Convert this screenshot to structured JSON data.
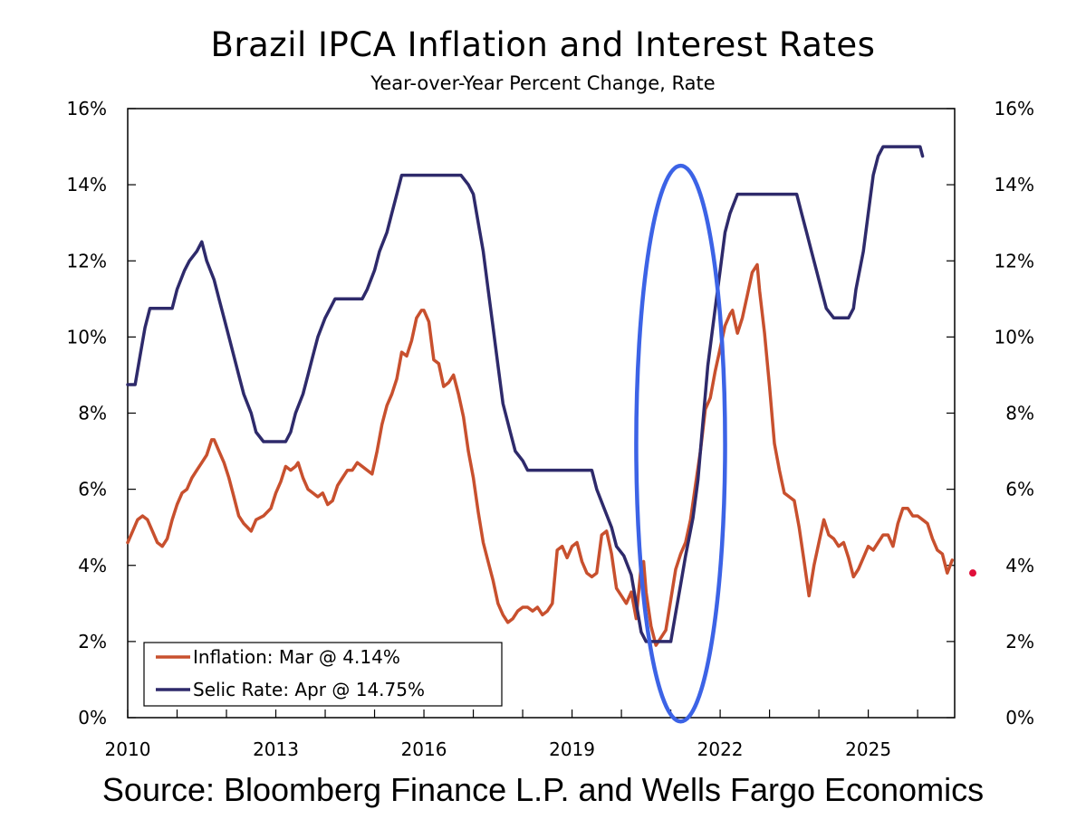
{
  "title": "Brazil IPCA Inflation and Interest Rates",
  "subtitle": "Year-over-Year Percent Change, Rate",
  "source": "Source: Bloomberg Finance L.P. and Wells Fargo Economics",
  "colors": {
    "inflation": "#c8502e",
    "selic": "#2e2a6b",
    "highlight": "#3c63e6",
    "marker": "#e0103a"
  },
  "chart_data": {
    "type": "line",
    "title": "Brazil IPCA Inflation and Interest Rates",
    "subtitle": "Year-over-Year Percent Change, Rate",
    "xlim": [
      2010,
      2026.75
    ],
    "ylim": [
      0,
      16
    ],
    "x_ticks": [
      2010,
      2013,
      2016,
      2019,
      2022,
      2025
    ],
    "x_tick_labels": [
      "2010",
      "2013",
      "2016",
      "2019",
      "2022",
      "2025"
    ],
    "y_ticks": [
      0,
      2,
      4,
      6,
      8,
      10,
      12,
      14,
      16
    ],
    "y_tick_labels": [
      "0%",
      "2%",
      "4%",
      "6%",
      "8%",
      "10%",
      "12%",
      "14%",
      "16%"
    ],
    "y_tick_labels_right": [
      "0%",
      "2%",
      "4%",
      "6%",
      "8%",
      "10%",
      "12%",
      "14%",
      "16%"
    ],
    "grid": false,
    "legend_position": "bottom-left",
    "series": [
      {
        "name": "Inflation",
        "legend_label": "Inflation: Mar @ 4.14%",
        "color_key": "inflation",
        "points": [
          [
            2010.0,
            4.6
          ],
          [
            2010.1,
            4.9
          ],
          [
            2010.2,
            5.2
          ],
          [
            2010.3,
            5.3
          ],
          [
            2010.4,
            5.2
          ],
          [
            2010.5,
            4.9
          ],
          [
            2010.6,
            4.6
          ],
          [
            2010.7,
            4.5
          ],
          [
            2010.8,
            4.7
          ],
          [
            2010.9,
            5.2
          ],
          [
            2011.0,
            5.6
          ],
          [
            2011.1,
            5.9
          ],
          [
            2011.2,
            6.0
          ],
          [
            2011.3,
            6.3
          ],
          [
            2011.4,
            6.5
          ],
          [
            2011.5,
            6.7
          ],
          [
            2011.6,
            6.9
          ],
          [
            2011.7,
            7.3
          ],
          [
            2011.75,
            7.3
          ],
          [
            2011.85,
            7.0
          ],
          [
            2011.95,
            6.7
          ],
          [
            2012.05,
            6.3
          ],
          [
            2012.15,
            5.8
          ],
          [
            2012.25,
            5.3
          ],
          [
            2012.35,
            5.1
          ],
          [
            2012.5,
            4.9
          ],
          [
            2012.6,
            5.2
          ],
          [
            2012.75,
            5.3
          ],
          [
            2012.9,
            5.5
          ],
          [
            2013.0,
            5.9
          ],
          [
            2013.1,
            6.2
          ],
          [
            2013.2,
            6.6
          ],
          [
            2013.3,
            6.5
          ],
          [
            2013.4,
            6.6
          ],
          [
            2013.45,
            6.7
          ],
          [
            2013.55,
            6.3
          ],
          [
            2013.65,
            6.0
          ],
          [
            2013.75,
            5.9
          ],
          [
            2013.85,
            5.8
          ],
          [
            2013.95,
            5.9
          ],
          [
            2014.05,
            5.6
          ],
          [
            2014.15,
            5.7
          ],
          [
            2014.25,
            6.1
          ],
          [
            2014.35,
            6.3
          ],
          [
            2014.45,
            6.5
          ],
          [
            2014.55,
            6.5
          ],
          [
            2014.65,
            6.7
          ],
          [
            2014.75,
            6.6
          ],
          [
            2014.85,
            6.5
          ],
          [
            2014.95,
            6.4
          ],
          [
            2015.05,
            7.0
          ],
          [
            2015.15,
            7.7
          ],
          [
            2015.25,
            8.2
          ],
          [
            2015.35,
            8.5
          ],
          [
            2015.45,
            8.9
          ],
          [
            2015.55,
            9.6
          ],
          [
            2015.65,
            9.5
          ],
          [
            2015.75,
            9.9
          ],
          [
            2015.85,
            10.5
          ],
          [
            2015.95,
            10.7
          ],
          [
            2016.0,
            10.7
          ],
          [
            2016.1,
            10.4
          ],
          [
            2016.2,
            9.4
          ],
          [
            2016.3,
            9.3
          ],
          [
            2016.4,
            8.7
          ],
          [
            2016.5,
            8.8
          ],
          [
            2016.6,
            9.0
          ],
          [
            2016.7,
            8.5
          ],
          [
            2016.8,
            7.9
          ],
          [
            2016.9,
            7.0
          ],
          [
            2017.0,
            6.3
          ],
          [
            2017.1,
            5.4
          ],
          [
            2017.2,
            4.6
          ],
          [
            2017.3,
            4.1
          ],
          [
            2017.4,
            3.6
          ],
          [
            2017.5,
            3.0
          ],
          [
            2017.6,
            2.7
          ],
          [
            2017.7,
            2.5
          ],
          [
            2017.8,
            2.6
          ],
          [
            2017.9,
            2.8
          ],
          [
            2018.0,
            2.9
          ],
          [
            2018.1,
            2.9
          ],
          [
            2018.2,
            2.8
          ],
          [
            2018.3,
            2.9
          ],
          [
            2018.4,
            2.7
          ],
          [
            2018.5,
            2.8
          ],
          [
            2018.6,
            3.0
          ],
          [
            2018.7,
            4.4
          ],
          [
            2018.8,
            4.5
          ],
          [
            2018.9,
            4.2
          ],
          [
            2019.0,
            4.5
          ],
          [
            2019.1,
            4.6
          ],
          [
            2019.2,
            4.1
          ],
          [
            2019.3,
            3.8
          ],
          [
            2019.4,
            3.7
          ],
          [
            2019.5,
            3.8
          ],
          [
            2019.6,
            4.8
          ],
          [
            2019.7,
            4.9
          ],
          [
            2019.8,
            4.3
          ],
          [
            2019.9,
            3.4
          ],
          [
            2020.0,
            3.2
          ],
          [
            2020.1,
            3.0
          ],
          [
            2020.2,
            3.3
          ],
          [
            2020.3,
            2.6
          ],
          [
            2020.4,
            4.0
          ],
          [
            2020.45,
            4.1
          ],
          [
            2020.5,
            3.3
          ],
          [
            2020.6,
            2.4
          ],
          [
            2020.7,
            1.9
          ],
          [
            2020.8,
            2.1
          ],
          [
            2020.9,
            2.3
          ],
          [
            2021.0,
            3.1
          ],
          [
            2021.1,
            3.9
          ],
          [
            2021.2,
            4.3
          ],
          [
            2021.3,
            4.6
          ],
          [
            2021.4,
            5.2
          ],
          [
            2021.5,
            6.1
          ],
          [
            2021.6,
            7.0
          ],
          [
            2021.7,
            8.1
          ],
          [
            2021.8,
            8.4
          ],
          [
            2021.9,
            9.1
          ],
          [
            2022.0,
            9.7
          ],
          [
            2022.1,
            10.3
          ],
          [
            2022.2,
            10.6
          ],
          [
            2022.25,
            10.7
          ],
          [
            2022.3,
            10.4
          ],
          [
            2022.35,
            10.1
          ],
          [
            2022.45,
            10.5
          ],
          [
            2022.55,
            11.1
          ],
          [
            2022.65,
            11.7
          ],
          [
            2022.75,
            11.9
          ],
          [
            2022.8,
            11.2
          ],
          [
            2022.9,
            10.1
          ],
          [
            2023.0,
            8.7
          ],
          [
            2023.1,
            7.2
          ],
          [
            2023.2,
            6.5
          ],
          [
            2023.3,
            5.9
          ],
          [
            2023.4,
            5.8
          ],
          [
            2023.5,
            5.7
          ],
          [
            2023.6,
            5.0
          ],
          [
            2023.7,
            4.1
          ],
          [
            2023.8,
            3.2
          ],
          [
            2023.9,
            4.0
          ],
          [
            2024.0,
            4.6
          ],
          [
            2024.1,
            5.2
          ],
          [
            2024.2,
            4.8
          ],
          [
            2024.3,
            4.7
          ],
          [
            2024.4,
            4.5
          ],
          [
            2024.5,
            4.6
          ],
          [
            2024.6,
            4.2
          ],
          [
            2024.7,
            3.7
          ],
          [
            2024.8,
            3.9
          ],
          [
            2024.9,
            4.2
          ],
          [
            2025.0,
            4.5
          ],
          [
            2025.1,
            4.4
          ],
          [
            2025.2,
            4.6
          ],
          [
            2025.3,
            4.8
          ],
          [
            2025.4,
            4.8
          ],
          [
            2025.5,
            4.5
          ],
          [
            2025.6,
            5.1
          ],
          [
            2025.7,
            5.5
          ],
          [
            2025.8,
            5.5
          ],
          [
            2025.9,
            5.3
          ],
          [
            2026.0,
            5.3
          ],
          [
            2026.1,
            5.2
          ],
          [
            2026.2,
            5.1
          ],
          [
            2026.3,
            4.7
          ],
          [
            2026.4,
            4.4
          ],
          [
            2026.5,
            4.3
          ],
          [
            2026.6,
            3.8
          ],
          [
            2026.7,
            4.14
          ]
        ]
      },
      {
        "name": "Selic Rate",
        "legend_label": "Selic Rate: Apr @ 14.75%",
        "color_key": "selic",
        "points": [
          [
            2010.0,
            8.75
          ],
          [
            2010.15,
            8.75
          ],
          [
            2010.25,
            9.5
          ],
          [
            2010.35,
            10.25
          ],
          [
            2010.45,
            10.75
          ],
          [
            2010.9,
            10.75
          ],
          [
            2011.0,
            11.25
          ],
          [
            2011.15,
            11.75
          ],
          [
            2011.25,
            12.0
          ],
          [
            2011.4,
            12.25
          ],
          [
            2011.5,
            12.5
          ],
          [
            2011.6,
            12.0
          ],
          [
            2011.75,
            11.5
          ],
          [
            2011.85,
            11.0
          ],
          [
            2011.95,
            10.5
          ],
          [
            2012.1,
            9.75
          ],
          [
            2012.25,
            9.0
          ],
          [
            2012.35,
            8.5
          ],
          [
            2012.5,
            8.0
          ],
          [
            2012.6,
            7.5
          ],
          [
            2012.75,
            7.25
          ],
          [
            2013.2,
            7.25
          ],
          [
            2013.3,
            7.5
          ],
          [
            2013.4,
            8.0
          ],
          [
            2013.55,
            8.5
          ],
          [
            2013.65,
            9.0
          ],
          [
            2013.75,
            9.5
          ],
          [
            2013.85,
            10.0
          ],
          [
            2014.0,
            10.5
          ],
          [
            2014.1,
            10.75
          ],
          [
            2014.2,
            11.0
          ],
          [
            2014.75,
            11.0
          ],
          [
            2014.85,
            11.25
          ],
          [
            2015.0,
            11.75
          ],
          [
            2015.1,
            12.25
          ],
          [
            2015.25,
            12.75
          ],
          [
            2015.35,
            13.25
          ],
          [
            2015.45,
            13.75
          ],
          [
            2015.55,
            14.25
          ],
          [
            2016.75,
            14.25
          ],
          [
            2016.9,
            14.0
          ],
          [
            2017.0,
            13.75
          ],
          [
            2017.1,
            13.0
          ],
          [
            2017.2,
            12.25
          ],
          [
            2017.3,
            11.25
          ],
          [
            2017.4,
            10.25
          ],
          [
            2017.5,
            9.25
          ],
          [
            2017.6,
            8.25
          ],
          [
            2017.75,
            7.5
          ],
          [
            2017.85,
            7.0
          ],
          [
            2018.0,
            6.75
          ],
          [
            2018.1,
            6.5
          ],
          [
            2019.4,
            6.5
          ],
          [
            2019.5,
            6.0
          ],
          [
            2019.65,
            5.5
          ],
          [
            2019.8,
            5.0
          ],
          [
            2019.9,
            4.5
          ],
          [
            2020.05,
            4.25
          ],
          [
            2020.2,
            3.75
          ],
          [
            2020.3,
            3.0
          ],
          [
            2020.4,
            2.25
          ],
          [
            2020.5,
            2.0
          ],
          [
            2021.0,
            2.0
          ],
          [
            2021.1,
            2.75
          ],
          [
            2021.2,
            3.5
          ],
          [
            2021.3,
            4.25
          ],
          [
            2021.45,
            5.25
          ],
          [
            2021.55,
            6.25
          ],
          [
            2021.65,
            7.75
          ],
          [
            2021.75,
            9.25
          ],
          [
            2021.9,
            10.75
          ],
          [
            2022.0,
            11.75
          ],
          [
            2022.1,
            12.75
          ],
          [
            2022.2,
            13.25
          ],
          [
            2022.35,
            13.75
          ],
          [
            2023.55,
            13.75
          ],
          [
            2023.65,
            13.25
          ],
          [
            2023.75,
            12.75
          ],
          [
            2023.85,
            12.25
          ],
          [
            2023.95,
            11.75
          ],
          [
            2024.05,
            11.25
          ],
          [
            2024.15,
            10.75
          ],
          [
            2024.3,
            10.5
          ],
          [
            2024.6,
            10.5
          ],
          [
            2024.7,
            10.75
          ],
          [
            2024.75,
            11.25
          ],
          [
            2024.9,
            12.25
          ],
          [
            2025.0,
            13.25
          ],
          [
            2025.1,
            14.25
          ],
          [
            2025.2,
            14.75
          ],
          [
            2025.3,
            15.0
          ],
          [
            2026.05,
            15.0
          ],
          [
            2026.1,
            14.75
          ]
        ]
      }
    ],
    "annotations": [
      {
        "type": "ellipse",
        "label": "highlight",
        "center": [
          2021.2,
          7.2
        ],
        "radius_x_years": 0.9,
        "radius_y": 7.3
      },
      {
        "type": "point",
        "label": "marker",
        "x": 2026.75,
        "y": 3.8
      }
    ]
  }
}
